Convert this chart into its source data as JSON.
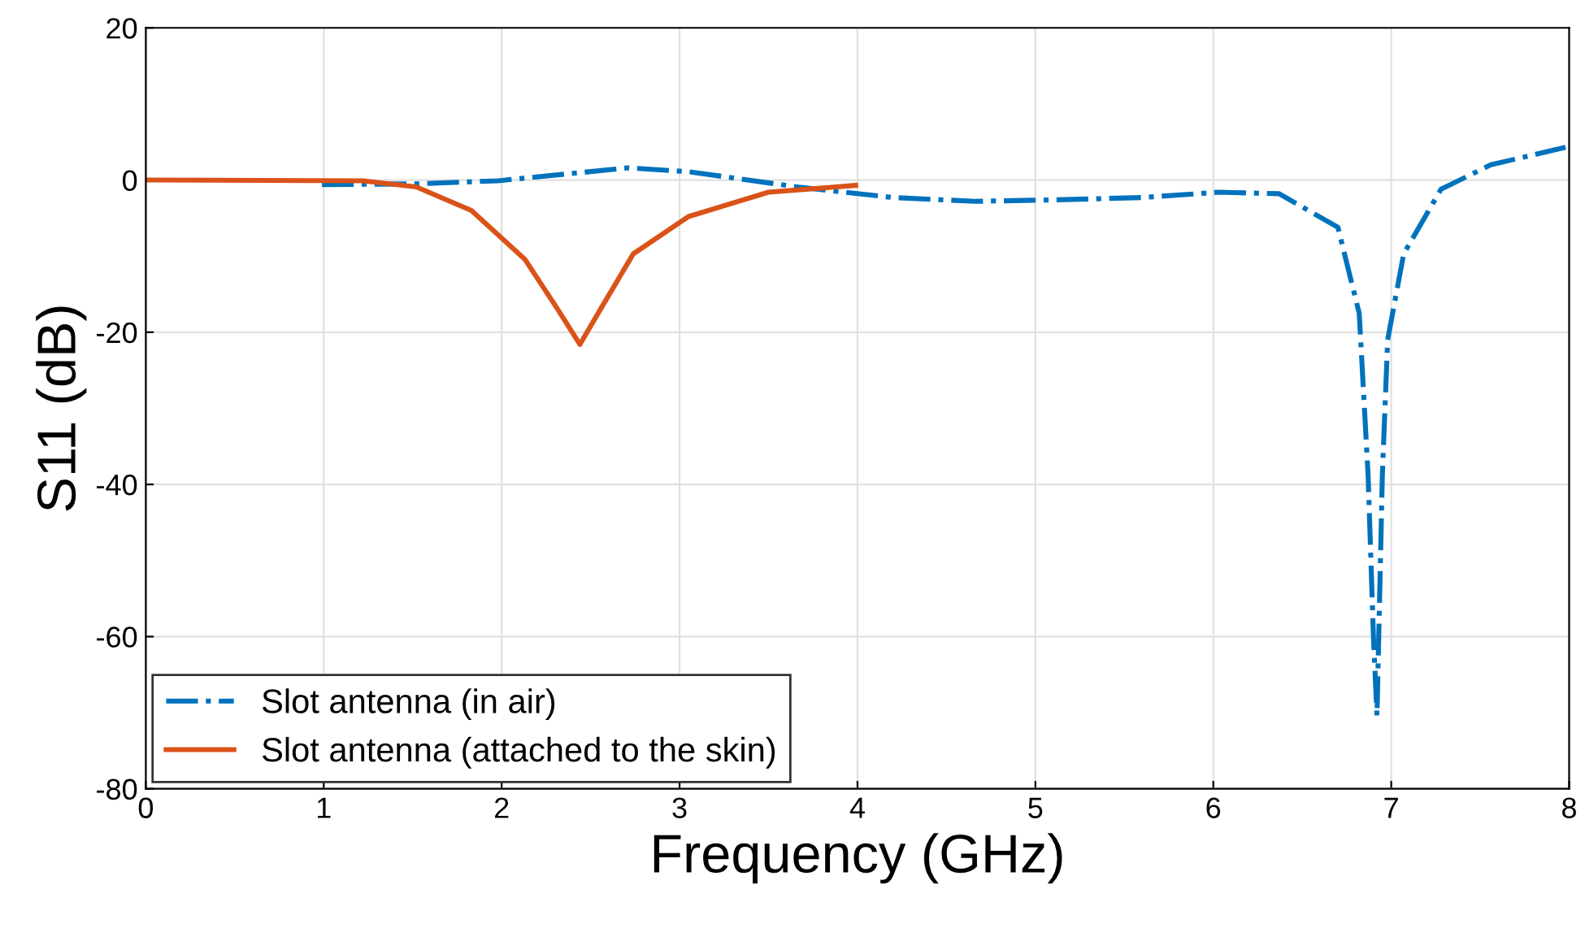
{
  "chart_data": {
    "type": "line",
    "xlabel": "Frequency (GHz)",
    "ylabel": "S11 (dB)",
    "xlim": [
      0,
      8
    ],
    "xticks": [
      0,
      1,
      2,
      3,
      4,
      5,
      6,
      7,
      8
    ],
    "ylim": [
      -80,
      20
    ],
    "yticks": [
      -80,
      -60,
      -40,
      -20,
      0,
      20
    ],
    "grid": true,
    "legend": "bottom left",
    "series": [
      {
        "name": "Slot antenna (in air)",
        "color": "#0072bd",
        "line_style": "dashdot",
        "x": [
          0.99,
          1.52,
          1.98,
          2.71,
          3.05,
          3.66,
          4.2,
          4.66,
          5.12,
          5.6,
          6.03,
          6.37,
          6.7,
          6.82,
          6.87,
          6.9,
          6.92,
          6.95,
          6.98,
          7.07,
          7.28,
          7.56,
          7.98
        ],
        "values": [
          -0.6,
          -0.5,
          -0.1,
          1.6,
          1.1,
          -0.9,
          -2.3,
          -2.8,
          -2.6,
          -2.3,
          -1.6,
          -1.8,
          -6.2,
          -17.5,
          -38.8,
          -60,
          -70.4,
          -38.8,
          -21,
          -9.7,
          -1.2,
          2,
          4.3
        ]
      },
      {
        "name": "Slot antenna (attached to the skin)",
        "color": "#d95319",
        "line_style": "solid",
        "x": [
          0,
          1.22,
          1.52,
          1.83,
          2.13,
          2.31,
          2.44,
          2.56,
          2.74,
          3.05,
          3.5,
          3.99
        ],
        "values": [
          0,
          -0.1,
          -0.9,
          -4.0,
          -10.4,
          -16.8,
          -21.6,
          -16.8,
          -9.7,
          -4.8,
          -1.6,
          -0.7
        ]
      }
    ]
  }
}
